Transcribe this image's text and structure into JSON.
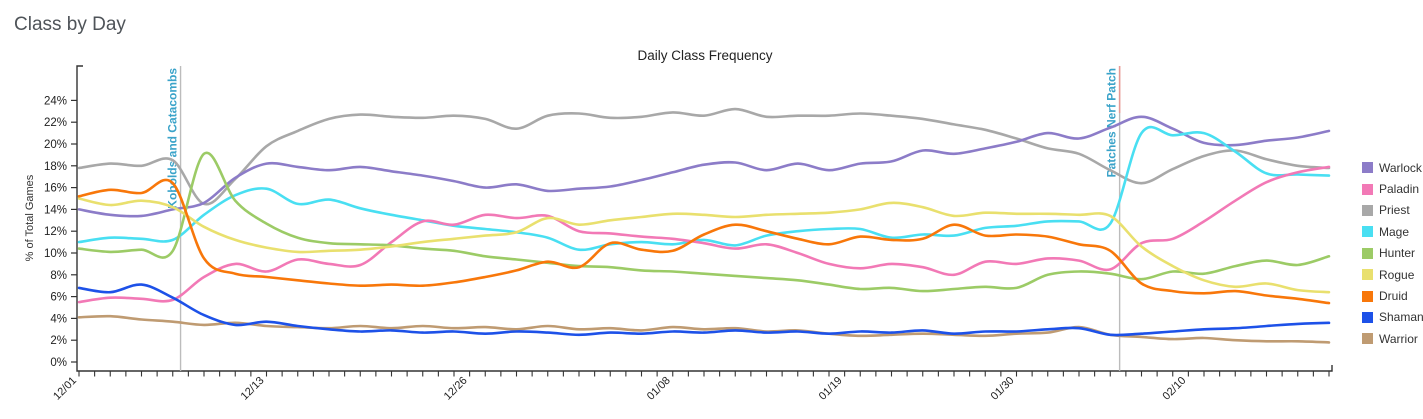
{
  "page": {
    "title": "Class by Day"
  },
  "chart_data": {
    "type": "line",
    "title": "Daily Class Frequency",
    "xlabel": "",
    "ylabel": "% of Total Games",
    "ylim": [
      0,
      25
    ],
    "ytick_step": 2,
    "ytick_max": 24,
    "ytick_suffix": "%",
    "grid": false,
    "legend_position": "right",
    "x_step_days": 2,
    "x_total_days": 80,
    "x": [
      "12/01",
      "12/03",
      "12/05",
      "12/07",
      "12/09",
      "12/11",
      "12/13",
      "12/15",
      "12/17",
      "12/19",
      "12/21",
      "12/23",
      "12/25",
      "12/27",
      "12/29",
      "12/31",
      "01/02",
      "01/04",
      "01/06",
      "01/08",
      "01/10",
      "01/12",
      "01/14",
      "01/16",
      "01/18",
      "01/20",
      "01/22",
      "01/24",
      "01/26",
      "01/28",
      "01/30",
      "02/01",
      "02/03",
      "02/05",
      "02/07",
      "02/09",
      "02/11",
      "02/13",
      "02/15",
      "02/17",
      "02/19"
    ],
    "x_ticks": [
      {
        "label": "12/01",
        "day": 0
      },
      {
        "label": "12/13",
        "day": 12
      },
      {
        "label": "12/26",
        "day": 25
      },
      {
        "label": "01/08",
        "day": 38
      },
      {
        "label": "01/19",
        "day": 49
      },
      {
        "label": "01/30",
        "day": 60
      },
      {
        "label": "02/10",
        "day": 71
      }
    ],
    "annotation_color": "#3aa3c9",
    "annotations": [
      {
        "label": "Kobolds and Catacombs",
        "day": 6.5,
        "line_color": "#bcbcbc"
      },
      {
        "label": "Patches Nerf Patch",
        "day": 66.6,
        "line_color": "#bcbcbc",
        "top_segment_color": "#e89a95"
      }
    ],
    "series": [
      {
        "name": "Warlock",
        "color": "#8c7cc8",
        "values": [
          14.0,
          13.5,
          13.4,
          14.0,
          14.6,
          16.9,
          18.2,
          17.9,
          17.6,
          17.9,
          17.5,
          17.1,
          16.6,
          16.0,
          16.3,
          15.7,
          15.9,
          16.1,
          16.7,
          17.4,
          18.1,
          18.3,
          17.6,
          18.2,
          17.6,
          18.2,
          18.4,
          19.4,
          19.1,
          19.6,
          20.2,
          21.0,
          20.5,
          21.5,
          22.5,
          21.4,
          20.1,
          19.9,
          20.3,
          20.6,
          21.2
        ]
      },
      {
        "name": "Paladin",
        "color": "#f279b6",
        "values": [
          5.5,
          5.9,
          5.8,
          5.7,
          7.8,
          9.0,
          8.3,
          9.4,
          9.0,
          8.9,
          11.0,
          12.9,
          12.6,
          13.5,
          13.2,
          13.4,
          12.0,
          11.8,
          11.5,
          11.3,
          10.9,
          10.4,
          10.8,
          10.0,
          9.0,
          8.6,
          9.0,
          8.7,
          8.0,
          9.2,
          9.0,
          9.5,
          9.3,
          8.5,
          10.9,
          11.3,
          12.9,
          14.8,
          16.5,
          17.4,
          17.9
        ]
      },
      {
        "name": "Priest",
        "color": "#a8a8a8",
        "values": [
          17.8,
          18.2,
          18.0,
          18.5,
          14.5,
          16.8,
          19.8,
          21.2,
          22.3,
          22.7,
          22.5,
          22.4,
          22.6,
          22.3,
          21.4,
          22.6,
          22.8,
          22.4,
          22.5,
          22.9,
          22.6,
          23.2,
          22.5,
          22.6,
          22.6,
          22.8,
          22.6,
          22.3,
          21.8,
          21.3,
          20.5,
          19.6,
          19.1,
          17.6,
          16.4,
          17.7,
          18.9,
          19.4,
          18.6,
          18.0,
          17.8
        ]
      },
      {
        "name": "Mage",
        "color": "#49dff2",
        "values": [
          11.0,
          11.4,
          11.3,
          11.2,
          13.5,
          15.3,
          15.9,
          14.5,
          14.9,
          14.1,
          13.5,
          13.0,
          12.5,
          12.2,
          11.9,
          11.4,
          10.3,
          10.8,
          11.0,
          10.8,
          11.2,
          10.7,
          11.6,
          12.0,
          12.2,
          12.2,
          11.4,
          11.7,
          11.6,
          12.3,
          12.5,
          12.9,
          12.9,
          12.7,
          21.0,
          20.8,
          21.0,
          19.3,
          17.3,
          17.2,
          17.1
        ]
      },
      {
        "name": "Hunter",
        "color": "#9ccb66",
        "values": [
          10.4,
          10.1,
          10.3,
          10.2,
          19.1,
          14.8,
          12.7,
          11.4,
          10.9,
          10.8,
          10.7,
          10.4,
          10.2,
          9.7,
          9.4,
          9.1,
          8.8,
          8.7,
          8.4,
          8.3,
          8.1,
          7.9,
          7.7,
          7.5,
          7.1,
          6.7,
          6.8,
          6.5,
          6.7,
          6.9,
          6.8,
          8.0,
          8.3,
          8.1,
          7.6,
          8.3,
          8.1,
          8.8,
          9.3,
          8.9,
          9.7
        ]
      },
      {
        "name": "Rogue",
        "color": "#e9e06e",
        "values": [
          15.0,
          14.4,
          14.8,
          14.2,
          12.4,
          11.2,
          10.5,
          10.1,
          10.2,
          10.3,
          10.6,
          11.0,
          11.3,
          11.6,
          11.9,
          13.2,
          12.6,
          13.0,
          13.3,
          13.6,
          13.5,
          13.3,
          13.5,
          13.6,
          13.7,
          14.0,
          14.6,
          14.2,
          13.4,
          13.7,
          13.6,
          13.6,
          13.5,
          13.4,
          10.6,
          8.8,
          7.5,
          6.9,
          7.2,
          6.6,
          6.4
        ]
      },
      {
        "name": "Druid",
        "color": "#f8770a",
        "values": [
          15.2,
          15.8,
          15.5,
          16.4,
          9.5,
          8.1,
          7.8,
          7.5,
          7.2,
          7.0,
          7.1,
          7.0,
          7.3,
          7.8,
          8.4,
          9.2,
          8.7,
          10.9,
          10.3,
          10.2,
          11.7,
          12.6,
          12.0,
          11.3,
          10.8,
          11.5,
          11.2,
          11.3,
          12.6,
          11.6,
          11.7,
          11.5,
          10.8,
          10.2,
          7.2,
          6.5,
          6.3,
          6.5,
          6.1,
          5.8,
          5.4
        ]
      },
      {
        "name": "Shaman",
        "color": "#1d51e8",
        "values": [
          6.8,
          6.4,
          7.1,
          5.9,
          4.3,
          3.4,
          3.7,
          3.3,
          3.0,
          2.8,
          2.9,
          2.7,
          2.8,
          2.6,
          2.8,
          2.7,
          2.5,
          2.7,
          2.6,
          2.8,
          2.7,
          2.9,
          2.7,
          2.8,
          2.6,
          2.8,
          2.7,
          2.9,
          2.6,
          2.8,
          2.8,
          3.0,
          3.1,
          2.5,
          2.6,
          2.8,
          3.0,
          3.1,
          3.3,
          3.5,
          3.6
        ]
      },
      {
        "name": "Warrior",
        "color": "#bf9b72",
        "values": [
          4.1,
          4.2,
          3.9,
          3.7,
          3.4,
          3.6,
          3.3,
          3.2,
          3.1,
          3.3,
          3.1,
          3.3,
          3.1,
          3.2,
          3.0,
          3.3,
          3.0,
          3.1,
          2.9,
          3.2,
          3.0,
          3.1,
          2.8,
          2.9,
          2.6,
          2.4,
          2.5,
          2.6,
          2.5,
          2.4,
          2.6,
          2.7,
          3.2,
          2.5,
          2.3,
          2.1,
          2.2,
          2.0,
          1.9,
          1.9,
          1.8
        ]
      }
    ],
    "z_order": [
      "Priest",
      "Warlock",
      "Mage",
      "Paladin",
      "Hunter",
      "Rogue",
      "Warrior",
      "Shaman",
      "Druid"
    ]
  }
}
